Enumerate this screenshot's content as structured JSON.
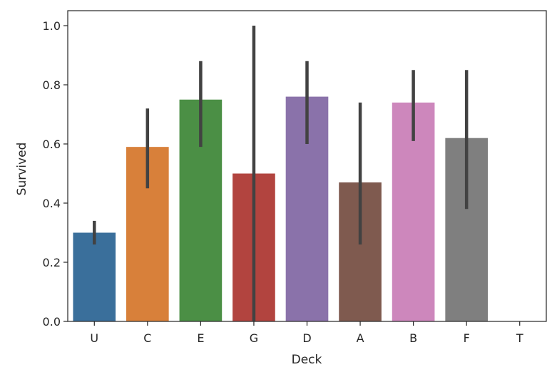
{
  "chart_data": {
    "type": "bar",
    "title": "",
    "xlabel": "Deck",
    "ylabel": "Survived",
    "ylim": [
      0,
      1.0
    ],
    "yticks": [
      0.0,
      0.2,
      0.4,
      0.6,
      0.8,
      1.0
    ],
    "ytick_labels": [
      "0.0",
      "0.2",
      "0.4",
      "0.6",
      "0.8",
      "1.0"
    ],
    "grid": false,
    "legend": "none",
    "categories": [
      "U",
      "C",
      "E",
      "G",
      "D",
      "A",
      "B",
      "F",
      "T"
    ],
    "values": [
      0.3,
      0.59,
      0.75,
      0.5,
      0.76,
      0.47,
      0.74,
      0.62,
      0.0
    ],
    "ci_low": [
      0.26,
      0.45,
      0.59,
      0.0,
      0.6,
      0.26,
      0.61,
      0.38,
      null
    ],
    "ci_high": [
      0.34,
      0.72,
      0.88,
      1.0,
      0.88,
      0.74,
      0.85,
      0.85,
      null
    ],
    "colors": [
      "#3a6f9b",
      "#d8803a",
      "#4b8f45",
      "#b2443f",
      "#8a72aa",
      "#7f5a4f",
      "#cd87bc",
      "#7f7f7f",
      "#a9a93a"
    ]
  }
}
